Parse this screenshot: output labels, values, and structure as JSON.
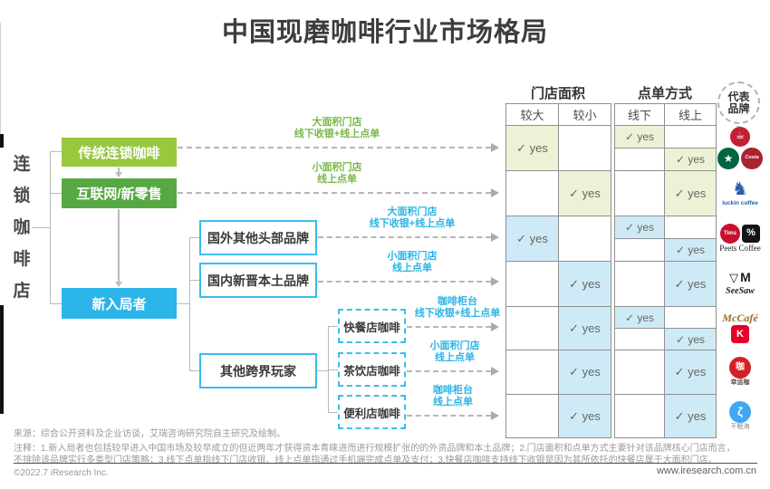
{
  "title": "中国现磨咖啡行业市场格局",
  "side_label": "连锁咖啡店",
  "brand_header": [
    "代表",
    "品牌"
  ],
  "colors": {
    "light_green": "#97c83d",
    "green": "#56a942",
    "cyan": "#2cb5e9",
    "cyan_border": "#3bbdec",
    "green_label": "#7ab648",
    "cyan_label": "#2bb3e6",
    "row_green": "#edf2d7",
    "row_blue": "#cfeaf7",
    "grid": "#909090",
    "line": "#b9b9b9"
  },
  "tree": {
    "level1": [
      {
        "name": "box-traditional-chain-coffee",
        "label": "传统连锁咖啡"
      },
      {
        "name": "box-internet-new-retail",
        "label": "互联网/新零售"
      },
      {
        "name": "box-new-entrants",
        "label": "新入局者"
      }
    ],
    "level2": [
      {
        "name": "box-foreign-head-brands",
        "label": "国外其他头部品牌"
      },
      {
        "name": "box-domestic-new-local-brands",
        "label": "国内新晋本土品牌"
      },
      {
        "name": "box-other-crossover-players",
        "label": "其他跨界玩家"
      }
    ],
    "level3": [
      {
        "name": "box-fastfood-coffee",
        "label": "快餐店咖啡"
      },
      {
        "name": "box-teashop-coffee",
        "label": "茶饮店咖啡"
      },
      {
        "name": "box-convenience-coffee",
        "label": "便利店咖啡"
      }
    ]
  },
  "arrow_labels": [
    {
      "color": "green",
      "lines": [
        "大面积门店",
        "线下收银+线上点单"
      ]
    },
    {
      "color": "green",
      "lines": [
        "小面积门店",
        "线上点单"
      ]
    },
    {
      "color": "cyan",
      "lines": [
        "大面积门店",
        "线下收银+线上点单"
      ]
    },
    {
      "color": "cyan",
      "lines": [
        "小面积门店",
        "线上点单"
      ]
    },
    {
      "color": "cyan",
      "lines": [
        "咖啡柜台",
        "线下收银+线上点单"
      ]
    },
    {
      "color": "cyan",
      "lines": [
        "小面积门店",
        "线上点单"
      ]
    },
    {
      "color": "cyan",
      "lines": [
        "咖啡柜台",
        "线上点单"
      ]
    }
  ],
  "table": {
    "group_headers": [
      "门店面积",
      "点单方式"
    ],
    "col_headers": [
      "较大",
      "较小",
      "线下",
      "线上"
    ],
    "yes_text": "✓ yes",
    "rows": [
      {
        "label": "传统连锁咖啡",
        "tint": "green",
        "larger": "yes",
        "smaller": "",
        "offline": "yes-top",
        "online": "yes-bottom"
      },
      {
        "label": "互联网/新零售",
        "tint": "green",
        "larger": "",
        "smaller": "yes",
        "offline": "",
        "online": "yes"
      },
      {
        "label": "国外其他头部品牌",
        "tint": "blue",
        "larger": "yes",
        "smaller": "",
        "offline": "yes-top",
        "online": "yes-bottom"
      },
      {
        "label": "国内新晋本土品牌",
        "tint": "blue",
        "larger": "",
        "smaller": "yes",
        "offline": "",
        "online": "yes"
      },
      {
        "label": "快餐店咖啡",
        "tint": "blue",
        "larger": "",
        "smaller": "yes",
        "offline": "yes-top",
        "online": "yes-bottom"
      },
      {
        "label": "茶饮店咖啡",
        "tint": "blue",
        "larger": "",
        "smaller": "yes",
        "offline": "",
        "online": "yes"
      },
      {
        "label": "便利店咖啡",
        "tint": "blue",
        "larger": "",
        "smaller": "yes",
        "offline": "",
        "online": "yes"
      }
    ]
  },
  "brands": [
    {
      "lines": [
        [
          {
            "name": "pacific-coffee-logo",
            "shape": "circle",
            "bg": "#c41f30",
            "fg": "#ffffff",
            "t": "☕",
            "s": 22,
            "fs": 11
          }
        ],
        [
          {
            "name": "starbucks-logo",
            "shape": "circle",
            "bg": "#00663f",
            "fg": "#ffffff",
            "t": "★",
            "s": 24,
            "fs": 12
          },
          {
            "name": "costa-coffee-logo",
            "shape": "circle",
            "bg": "#aa2330",
            "fg": "#ffffff",
            "t": "Costa",
            "s": 24,
            "fs": 5.5,
            "it": 1
          }
        ]
      ]
    },
    {
      "lines": [
        [
          {
            "name": "luckin-coffee-logo",
            "t": "♞",
            "fg": "#2a5caa",
            "fs": 20
          }
        ],
        [
          {
            "name": "luckin-coffee-wordmark",
            "t": "luckin coffee",
            "fg": "#2a5caa",
            "fs": 6.5,
            "b": 1
          }
        ]
      ]
    },
    {
      "lines": [
        [
          {
            "name": "tim-hortons-logo",
            "shape": "circle",
            "bg": "#c8102e",
            "fg": "#ffffff",
            "t": "Tims",
            "s": 22,
            "fs": 6,
            "b": 1
          },
          {
            "name": "arabica-percent-logo",
            "shape": "square",
            "bg": "#141414",
            "fg": "#ffffff",
            "t": "%",
            "s": 20,
            "fs": 11,
            "b": 1
          }
        ],
        [
          {
            "name": "peets-coffee-wordmark",
            "t": "Peets Coffee",
            "fg": "#1c1c1c",
            "fs": 9,
            "serif": 1
          }
        ]
      ]
    },
    {
      "lines": [
        [
          {
            "name": "manner-coffee-logo",
            "t": "▽",
            "fg": "#1c1c1c",
            "fs": 13,
            "b": 1
          },
          {
            "name": "m-stand-logo",
            "t": "M",
            "fg": "#1c1c1c",
            "fs": 14,
            "b": 1
          }
        ],
        [
          {
            "name": "seesaw-coffee-wordmark",
            "t": "SeeSaw",
            "fg": "#1c1c1c",
            "fs": 10,
            "serif": 1,
            "it": 1,
            "b": 1
          }
        ]
      ]
    },
    {
      "lines": [
        [
          {
            "name": "mccafe-wordmark",
            "t": "McCafé",
            "fg": "#9c6f2f",
            "fs": 12,
            "serif": 1,
            "it": 1,
            "b": 1
          }
        ],
        [
          {
            "name": "kfc-k-coffee-logo",
            "shape": "square",
            "bg": "#e4002b",
            "fg": "#ffffff",
            "t": "K",
            "s": 20,
            "fs": 11,
            "b": 1
          }
        ]
      ]
    },
    {
      "lines": [
        [
          {
            "name": "xingyunka-logo",
            "shape": "circle",
            "bg": "#d51f26",
            "fg": "#ffffff",
            "t": "咖",
            "s": 24,
            "fs": 10
          }
        ],
        [
          {
            "name": "xingyunka-caption",
            "t": "幸运咖",
            "fg": "#5a4b42",
            "fs": 7,
            "b": 1
          }
        ]
      ]
    },
    {
      "lines": [
        [
          {
            "name": "bumianhai-logo",
            "shape": "circle",
            "bg": "#3fa7f3",
            "fg": "#ffffff",
            "t": "ζ",
            "s": 24,
            "fs": 13,
            "b": 1
          }
        ],
        [
          {
            "name": "bumianhai-caption",
            "t": "不眠海",
            "fg": "#8a8a8a",
            "fs": 7
          }
        ]
      ]
    }
  ],
  "footer": {
    "source": "来源：综合公开资料及企业访谈，艾瑞咨询研究院自主研究及绘制。",
    "note1": "注释：1.新入局者也包括较早进入中国市场及较早成立的但近两年才获得资本青睐进而进行规模扩张的的外资品牌和本土品牌；2.门店面积和点单方式主要针对该品牌核心门店而言，",
    "note2": "不排除该品牌实行多类型门店策略；3.线下点单指线下门店收银、线上点单指通过手机端完成点单及支付；3.快餐店咖啡支持线下收银是因为其所依托的快餐店属于大面积门店。",
    "copyright": "©2022.7 iResearch Inc.",
    "website": "www.iresearch.com.cn"
  }
}
